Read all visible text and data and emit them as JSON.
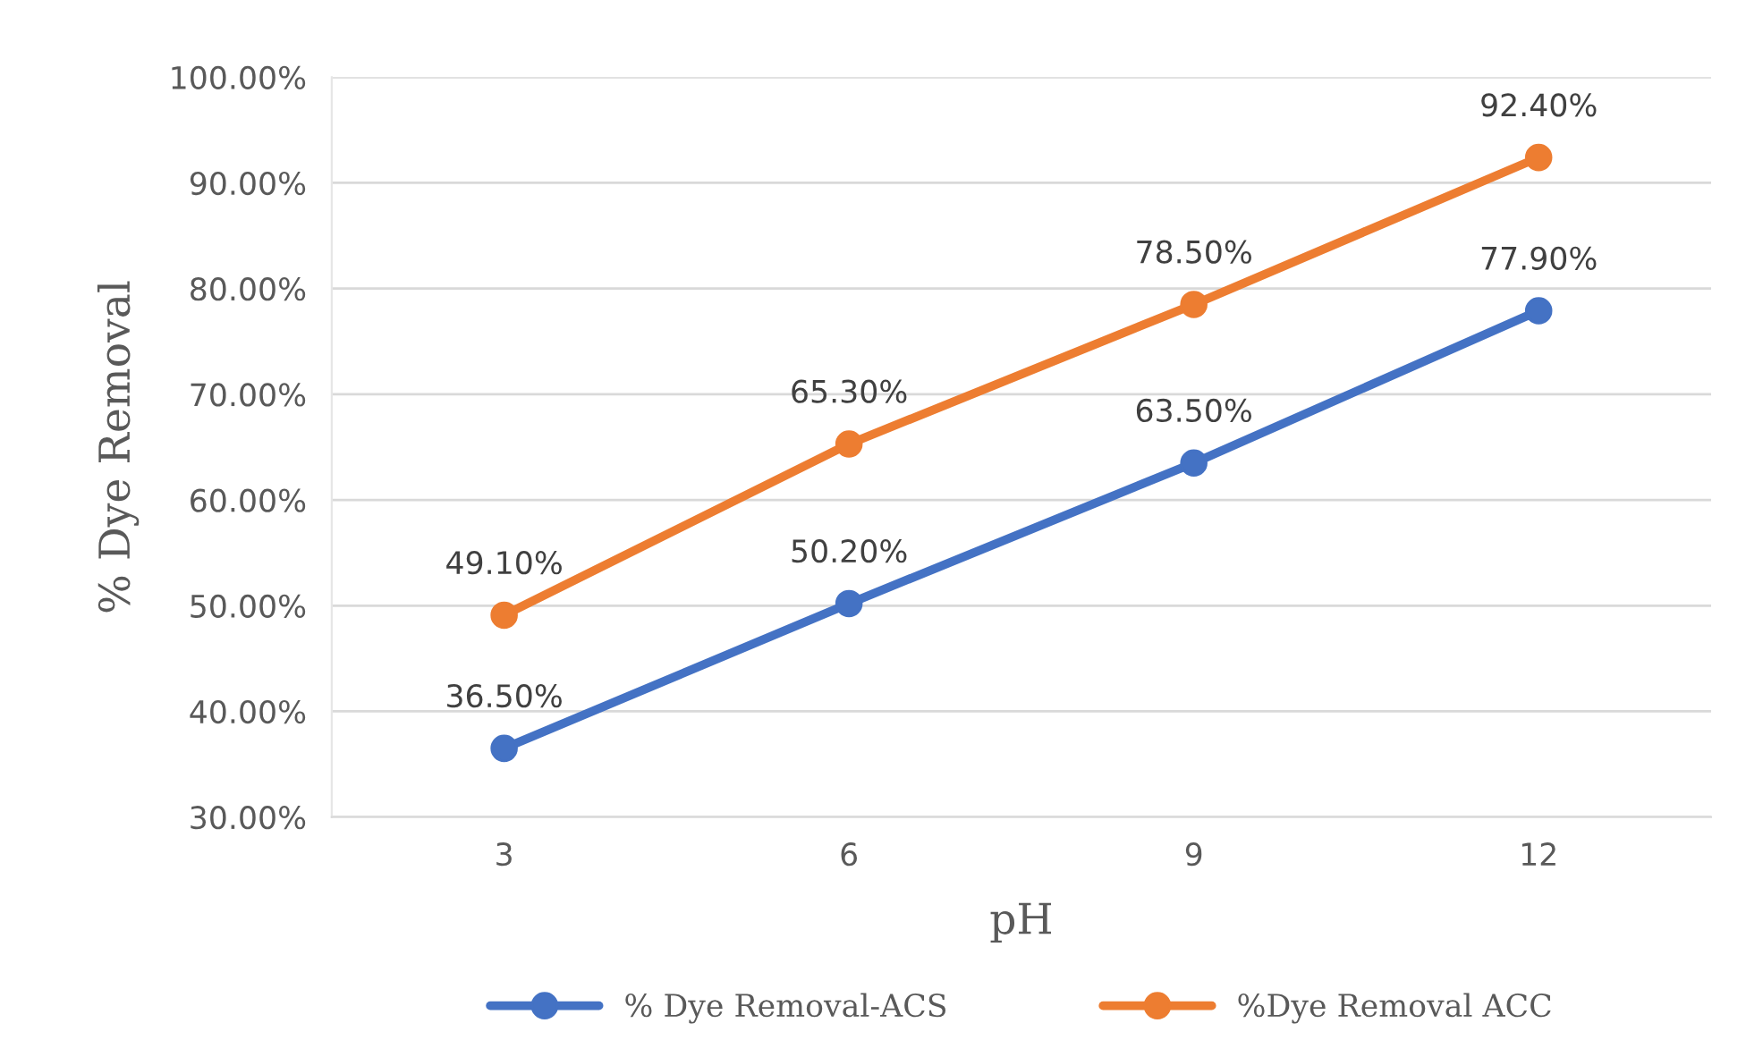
{
  "chart_data": {
    "type": "line",
    "xlabel": "pH",
    "ylabel": "% Dye Removal",
    "categories": [
      "3",
      "6",
      "9",
      "12"
    ],
    "series": [
      {
        "name": "% Dye Removal-ACS",
        "color": "#4472c4",
        "values": [
          36.5,
          50.2,
          63.5,
          77.9
        ],
        "value_labels": [
          "36.50%",
          "50.20%",
          "63.50%",
          "77.90%"
        ]
      },
      {
        "name": "%Dye Removal ACC",
        "color": "#ed7d31",
        "values": [
          49.1,
          65.3,
          78.5,
          92.4
        ],
        "value_labels": [
          "49.10%",
          "65.30%",
          "78.50%",
          "92.40%"
        ]
      }
    ],
    "ylim": [
      30,
      100
    ],
    "yticks": [
      {
        "value": 30,
        "label": "30.00%"
      },
      {
        "value": 40,
        "label": "40.00%"
      },
      {
        "value": 50,
        "label": "50.00%"
      },
      {
        "value": 60,
        "label": "60.00%"
      },
      {
        "value": 70,
        "label": "70.00%"
      },
      {
        "value": 80,
        "label": "80.00%"
      },
      {
        "value": 90,
        "label": "90.00%"
      },
      {
        "value": 100,
        "label": "100.00%"
      }
    ],
    "grid": "y",
    "legend": "bottom",
    "marker": "circle",
    "line_style": "solid"
  }
}
